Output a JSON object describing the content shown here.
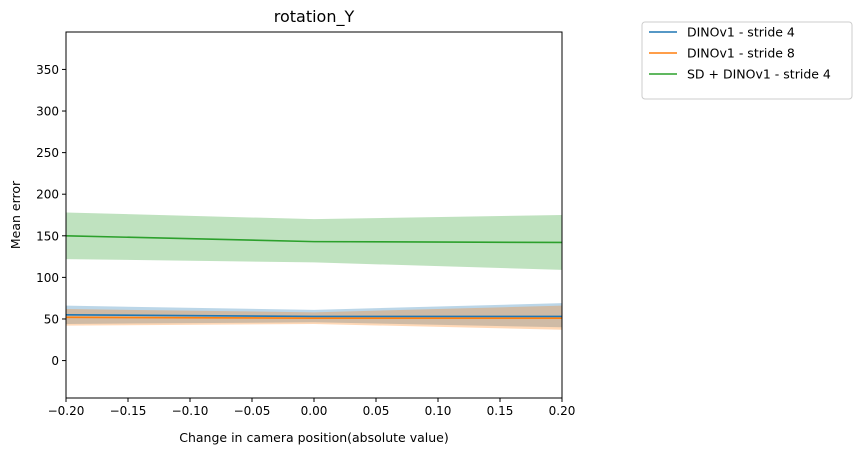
{
  "chart_data": {
    "type": "line",
    "title": "rotation_Y",
    "xlabel": "Change in camera position(absolute value)",
    "ylabel": "Mean error",
    "xlim": [
      -0.2,
      0.2
    ],
    "ylim": [
      -45,
      395
    ],
    "xticks": [
      -0.2,
      -0.15,
      -0.1,
      -0.05,
      0.0,
      0.05,
      0.1,
      0.15,
      0.2
    ],
    "xtick_labels": [
      "−0.20",
      "−0.15",
      "−0.10",
      "−0.05",
      "0.00",
      "0.05",
      "0.10",
      "0.15",
      "0.20"
    ],
    "yticks": [
      0,
      50,
      100,
      150,
      200,
      250,
      300,
      350
    ],
    "ytick_labels": [
      "0",
      "50",
      "100",
      "150",
      "200",
      "250",
      "300",
      "350"
    ],
    "grid": false,
    "legend_position": "outside-top-right",
    "x": [
      -0.2,
      0.0,
      0.2
    ],
    "series": [
      {
        "name": "DINOv1 - stride 4",
        "color": "#1f77b4",
        "values": [
          55,
          53,
          53
        ],
        "lower": [
          44,
          46,
          40
        ],
        "upper": [
          66,
          61,
          69
        ]
      },
      {
        "name": "DINOv1 - stride 8",
        "color": "#ff7f0e",
        "values": [
          52,
          51,
          51
        ],
        "lower": [
          42,
          44,
          37
        ],
        "upper": [
          62,
          58,
          66
        ]
      },
      {
        "name": "SD + DINOv1 - stride 4",
        "color": "#2ca02c",
        "values": [
          150,
          143,
          142
        ],
        "lower": [
          122,
          118,
          109
        ],
        "upper": [
          178,
          170,
          175
        ]
      }
    ]
  }
}
